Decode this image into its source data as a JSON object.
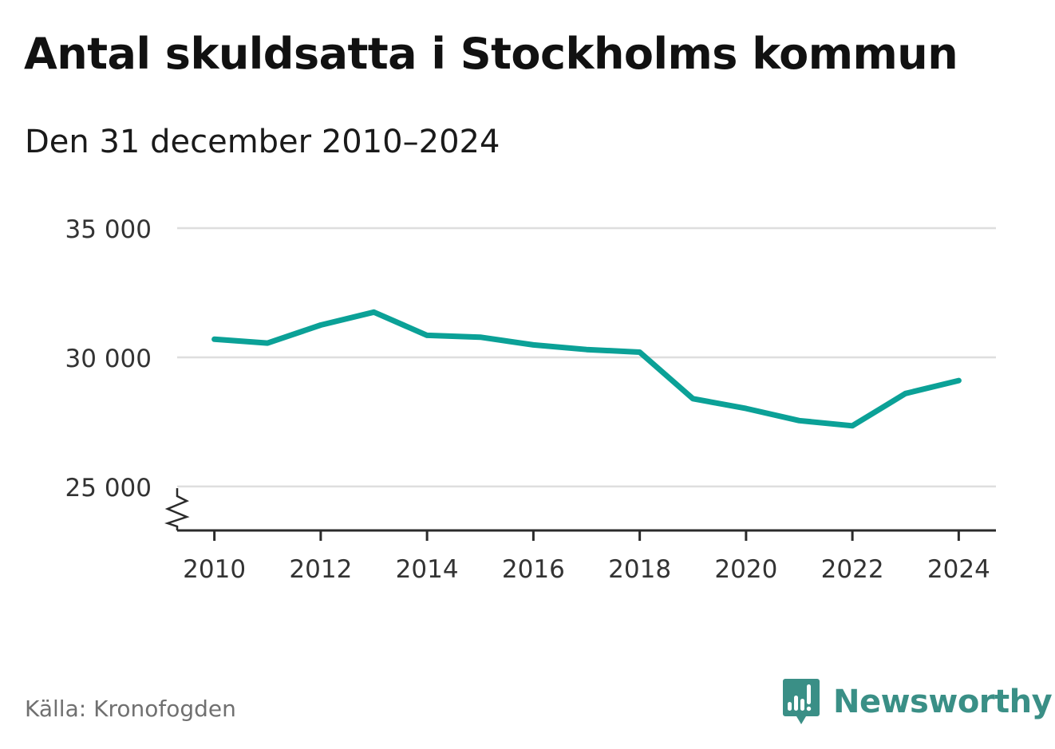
{
  "header": {
    "title": "Antal skuldsatta i Stockholms kommun",
    "subtitle": "Den 31 december 2010–2024"
  },
  "footer": {
    "source": "Källa: Kronofogden",
    "brand": "Newsworthy",
    "brand_icon": "newsworthy-logo-icon"
  },
  "colors": {
    "line": "#0ba197",
    "grid": "#dedede",
    "axis": "#2b2b2b",
    "tick_text": "#333333",
    "brand": "#3a8f86"
  },
  "chart_data": {
    "type": "line",
    "title": "Antal skuldsatta i Stockholms kommun",
    "subtitle": "Den 31 december 2010–2024",
    "xlabel": "",
    "ylabel": "",
    "x": [
      2010,
      2011,
      2012,
      2013,
      2014,
      2015,
      2016,
      2017,
      2018,
      2019,
      2020,
      2021,
      2022,
      2023,
      2024
    ],
    "series": [
      {
        "name": "Antal skuldsatta",
        "values": [
          30700,
          30550,
          31250,
          31750,
          30850,
          30780,
          30480,
          30300,
          30200,
          28400,
          28020,
          27550,
          27350,
          28600,
          29100
        ]
      }
    ],
    "xlim": [
      2009.3,
      2024.7
    ],
    "ylim": [
      23300,
      35000
    ],
    "y_ticks": [
      25000,
      30000,
      35000
    ],
    "y_tick_labels": [
      "25 000",
      "30 000",
      "35 000"
    ],
    "x_ticks": [
      2010,
      2012,
      2014,
      2016,
      2018,
      2020,
      2022,
      2024
    ],
    "x_tick_labels": [
      "2010",
      "2012",
      "2014",
      "2016",
      "2018",
      "2020",
      "2022",
      "2024"
    ],
    "y_axis_break": true,
    "grid": true,
    "legend": "none"
  }
}
